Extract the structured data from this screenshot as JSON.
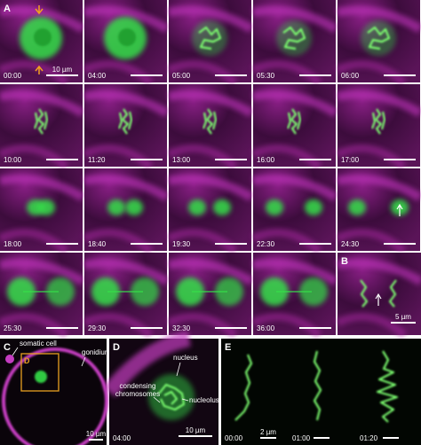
{
  "panel_a": {
    "label": "A",
    "scale_label": "10 µm",
    "times": [
      "00:00",
      "04:00",
      "05:00",
      "05:30",
      "06:00",
      "10:00",
      "11:20",
      "13:00",
      "16:00",
      "17:00",
      "18:00",
      "18:40",
      "19:30",
      "22:30",
      "24:30",
      "25:30",
      "29:30",
      "32:30",
      "36:00"
    ]
  },
  "panel_b": {
    "label": "B",
    "scale_label": "5 µm"
  },
  "panel_c": {
    "label": "C",
    "somatic_cell": "somatic cell",
    "gonidium": "gonidium",
    "box_label": "D",
    "scale_label": "10 µm"
  },
  "panel_d": {
    "label": "D",
    "time": "04:00",
    "nucleus": "nucleus",
    "condensing_chromosomes": [
      "condensing",
      "chromosomes"
    ],
    "nucleolus": "nucleolus",
    "scale_label": "10 µm"
  },
  "panel_e": {
    "label": "E",
    "times": [
      "00:00",
      "01:00",
      "01:20"
    ],
    "scale_label": "2 µm"
  }
}
